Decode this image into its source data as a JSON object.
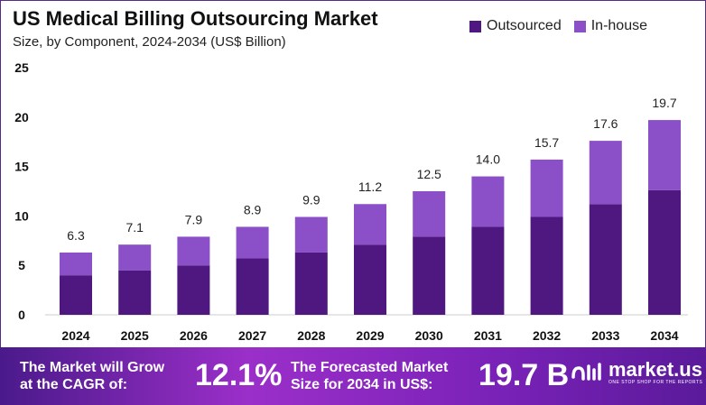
{
  "chart_data": {
    "type": "bar",
    "stacked": true,
    "title": "US Medical Billing Outsourcing Market",
    "subtitle": "Size, by Component, 2024-2034 (US$ Billion)",
    "categories": [
      "2024",
      "2025",
      "2026",
      "2027",
      "2028",
      "2029",
      "2030",
      "2031",
      "2032",
      "2033",
      "2034"
    ],
    "series": [
      {
        "name": "Outsourced",
        "color": "#4e1880",
        "values": [
          4.0,
          4.5,
          5.0,
          5.7,
          6.3,
          7.1,
          7.9,
          8.9,
          9.9,
          11.2,
          12.6
        ]
      },
      {
        "name": "In-house",
        "color": "#8b4fc8",
        "values": [
          2.3,
          2.6,
          2.9,
          3.2,
          3.6,
          4.1,
          4.6,
          5.1,
          5.8,
          6.4,
          7.1
        ]
      }
    ],
    "totals": [
      "6.3",
      "7.1",
      "7.9",
      "8.9",
      "9.9",
      "11.2",
      "12.5",
      "14.0",
      "15.7",
      "17.6",
      "19.7"
    ],
    "ylim": [
      0,
      25
    ],
    "yticks": [
      "0",
      "5",
      "10",
      "15",
      "20",
      "25"
    ],
    "grid": false,
    "legend_position": "top-right"
  },
  "banner": {
    "cagr_label_1": "The Market will Grow",
    "cagr_label_2": "at the CAGR of:",
    "cagr_value": "12.1%",
    "forecast_label_1": "The Forecasted Market",
    "forecast_label_2": "Size for 2034 in US$:",
    "forecast_value": "19.7 B",
    "logo_name": "market.us",
    "logo_tagline": "ONE STOP SHOP FOR THE REPORTS"
  }
}
